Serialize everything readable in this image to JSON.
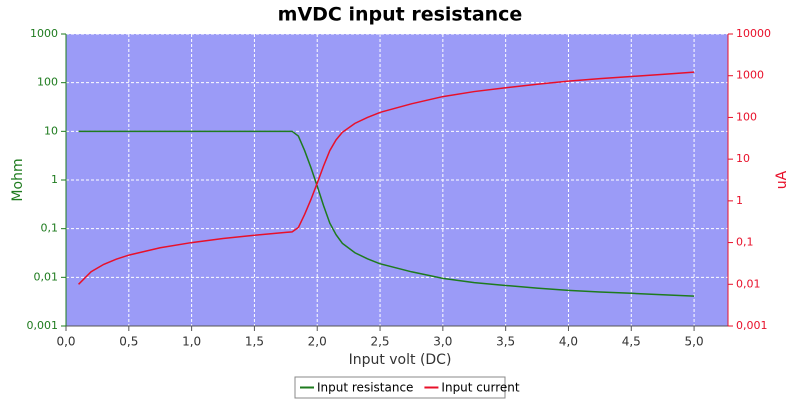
{
  "chart_data": {
    "type": "line",
    "title": "mVDC input resistance",
    "xlabel": "Input volt (DC)",
    "ylabel": "Mohm",
    "y2label": "uA",
    "log_y": true,
    "log_y2": true,
    "grid": true,
    "legend": "bottom",
    "background": "#9b9bf7",
    "x": [
      0.1,
      0.2,
      0.3,
      0.4,
      0.5,
      0.75,
      1.0,
      1.25,
      1.5,
      1.75,
      1.8,
      1.85,
      1.9,
      1.95,
      2.0,
      2.05,
      2.1,
      2.15,
      2.2,
      2.3,
      2.4,
      2.5,
      2.75,
      3.0,
      3.25,
      3.5,
      3.75,
      4.0,
      4.25,
      4.5,
      4.75,
      5.0
    ],
    "series": [
      {
        "name": "Input resistance",
        "color": "#1e7b1e",
        "axis": "y",
        "values": [
          10,
          10,
          10,
          10,
          10,
          10,
          10,
          10,
          10,
          10,
          10,
          8,
          4,
          1.8,
          0.75,
          0.3,
          0.13,
          0.075,
          0.05,
          0.032,
          0.024,
          0.019,
          0.013,
          0.0095,
          0.0078,
          0.0068,
          0.006,
          0.0054,
          0.005,
          0.0047,
          0.0044,
          0.0041
        ]
      },
      {
        "name": "Input current",
        "color": "#e8102a",
        "axis": "y2",
        "values": [
          0.01,
          0.02,
          0.03,
          0.04,
          0.05,
          0.075,
          0.1,
          0.125,
          0.15,
          0.175,
          0.18,
          0.23,
          0.475,
          1.08,
          2.67,
          6.8,
          16,
          29,
          44,
          72,
          100,
          132,
          212,
          316,
          417,
          515,
          625,
          741,
          850,
          957,
          1080,
          1220
        ]
      }
    ],
    "xlim": [
      0,
      5.27
    ],
    "xticks": [
      {
        "value": 0,
        "label": "0,0"
      },
      {
        "value": 0.5,
        "label": "0,5"
      },
      {
        "value": 1,
        "label": "1,0"
      },
      {
        "value": 1.5,
        "label": "1,5"
      },
      {
        "value": 2,
        "label": "2,0"
      },
      {
        "value": 2.5,
        "label": "2,5"
      },
      {
        "value": 3,
        "label": "3,0"
      },
      {
        "value": 3.5,
        "label": "3,5"
      },
      {
        "value": 4,
        "label": "4,0"
      },
      {
        "value": 4.5,
        "label": "4,5"
      },
      {
        "value": 5,
        "label": "5,0"
      }
    ],
    "ylim": [
      0.001,
      1000
    ],
    "yticks": [
      {
        "value": 0.001,
        "label": "0,001"
      },
      {
        "value": 0.01,
        "label": "0,01"
      },
      {
        "value": 0.1,
        "label": "0,1"
      },
      1,
      10,
      100,
      1000
    ],
    "y2lim": [
      0.001,
      10000
    ],
    "y2ticks": [
      {
        "value": 0.001,
        "label": "0,001"
      },
      {
        "value": 0.01,
        "label": "0,01"
      },
      {
        "value": 0.1,
        "label": "0,1"
      },
      1,
      10,
      100,
      1000,
      10000
    ]
  }
}
